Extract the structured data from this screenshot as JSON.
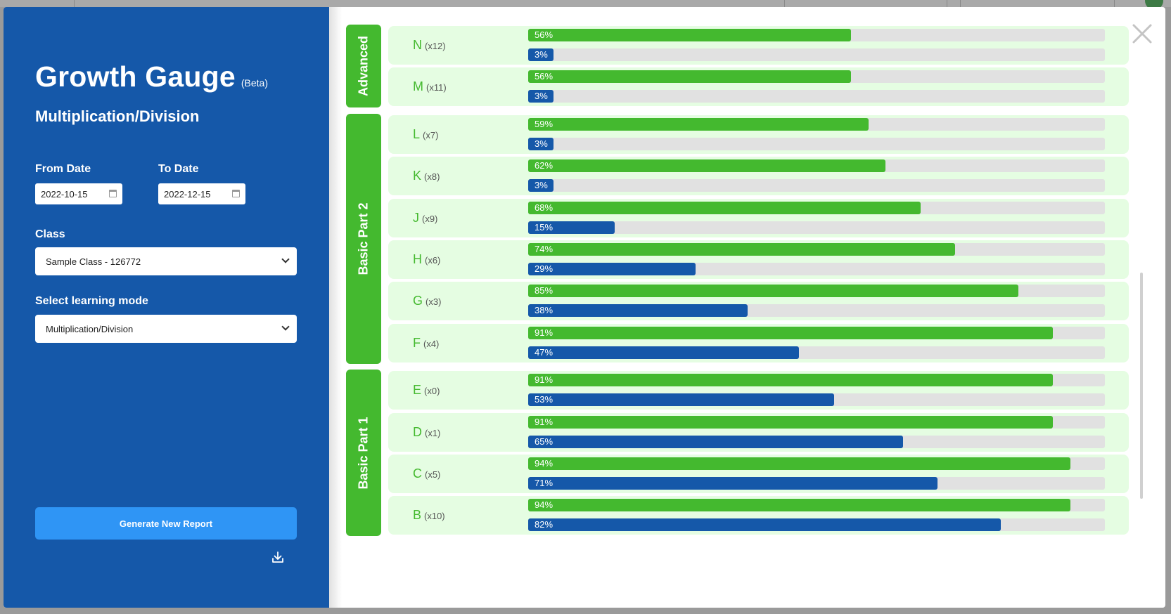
{
  "header": {
    "title": "Growth Gauge",
    "beta": "(Beta)",
    "subtitle": "Multiplication/Division"
  },
  "filters": {
    "from_label": "From Date",
    "from_value": "2022-10-15",
    "to_label": "To Date",
    "to_value": "2022-12-15",
    "class_label": "Class",
    "class_value": "Sample Class - 126772",
    "mode_label": "Select learning mode",
    "mode_value": "Multiplication/Division"
  },
  "actions": {
    "generate_label": "Generate New Report"
  },
  "colors": {
    "panel": "#1558a9",
    "green": "#44b92f",
    "blue": "#1558a9",
    "row_bg": "#e5fde2",
    "button": "#2f95f5"
  },
  "groups": [
    {
      "name": "Advanced",
      "levels": [
        {
          "level": "N",
          "count": "(x12)",
          "green": 56,
          "blue": 3
        },
        {
          "level": "M",
          "count": "(x11)",
          "green": 56,
          "blue": 3
        }
      ]
    },
    {
      "name": "Basic Part 2",
      "levels": [
        {
          "level": "L",
          "count": "(x7)",
          "green": 59,
          "blue": 3
        },
        {
          "level": "K",
          "count": "(x8)",
          "green": 62,
          "blue": 3
        },
        {
          "level": "J",
          "count": "(x9)",
          "green": 68,
          "blue": 15
        },
        {
          "level": "H",
          "count": "(x6)",
          "green": 74,
          "blue": 29
        },
        {
          "level": "G",
          "count": "(x3)",
          "green": 85,
          "blue": 38
        },
        {
          "level": "F",
          "count": "(x4)",
          "green": 91,
          "blue": 47
        }
      ]
    },
    {
      "name": "Basic Part 1",
      "levels": [
        {
          "level": "E",
          "count": "(x0)",
          "green": 91,
          "blue": 53
        },
        {
          "level": "D",
          "count": "(x1)",
          "green": 91,
          "blue": 65
        },
        {
          "level": "C",
          "count": "(x5)",
          "green": 94,
          "blue": 71
        },
        {
          "level": "B",
          "count": "(x10)",
          "green": 94,
          "blue": 82
        }
      ]
    }
  ],
  "icons": {
    "close": "close-icon",
    "download": "download-icon",
    "calendar": "calendar-icon",
    "dropdown": "chevron-down-icon"
  }
}
